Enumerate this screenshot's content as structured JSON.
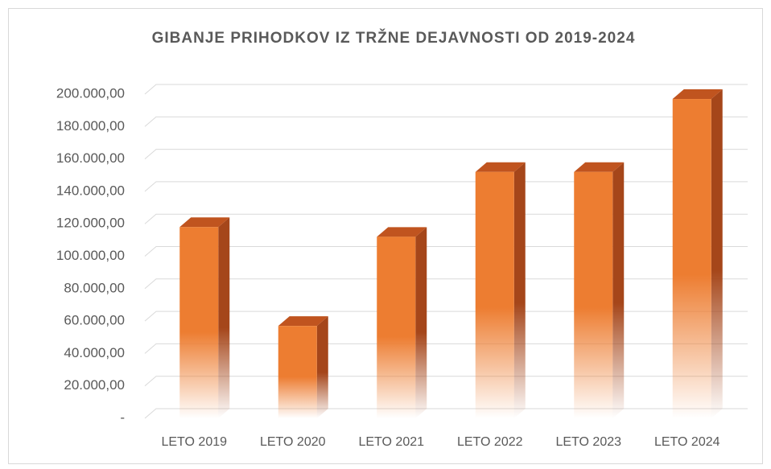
{
  "chart_data": {
    "type": "bar3d",
    "title": "GIBANJE PRIHODKOV IZ TRŽNE DEJAVNOSTI OD 2019-2024",
    "categories": [
      "LETO 2019",
      "LETO 2020",
      "LETO 2021",
      "LETO 2022",
      "LETO 2023",
      "LETO 2024"
    ],
    "values": [
      118000,
      57000,
      112000,
      152000,
      152000,
      197000
    ],
    "color": "#ed7d31",
    "ylim": [
      0,
      200000
    ],
    "yticks": [
      {
        "value": 0,
        "label": "-"
      },
      {
        "value": 20000,
        "label": "20.000,00"
      },
      {
        "value": 40000,
        "label": "40.000,00"
      },
      {
        "value": 60000,
        "label": "60.000,00"
      },
      {
        "value": 80000,
        "label": "80.000,00"
      },
      {
        "value": 100000,
        "label": "100.000,00"
      },
      {
        "value": 120000,
        "label": "120.000,00"
      },
      {
        "value": 140000,
        "label": "140.000,00"
      },
      {
        "value": 160000,
        "label": "160.000,00"
      },
      {
        "value": 180000,
        "label": "180.000,00"
      },
      {
        "value": 200000,
        "label": "200.000,00"
      }
    ],
    "grid": true
  }
}
